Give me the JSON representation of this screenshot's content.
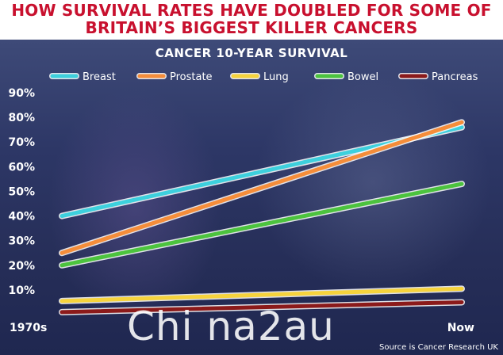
{
  "headline": {
    "line1": "HOW SURVIVAL RATES HAVE DOUBLED FOR SOME OF",
    "line2": "BRITAIN’S BIGGEST KILLER CANCERS"
  },
  "source": "Source is Cancer Research UK",
  "watermark": "Chi na2au",
  "chart_data": {
    "type": "line",
    "title": "CANCER 10-YEAR SURVIVAL",
    "categories": [
      "1970s",
      "Now"
    ],
    "ylim": [
      0,
      90
    ],
    "yticks": [
      "",
      "10%",
      "20%",
      "30%",
      "40%",
      "50%",
      "60%",
      "70%",
      "80%",
      "90%"
    ],
    "grid": false,
    "legend": "top",
    "series": [
      {
        "name": "Breast",
        "color": "#3dd0dd",
        "values": [
          40,
          76
        ]
      },
      {
        "name": "Prostate",
        "color": "#f58d3a",
        "values": [
          25,
          78
        ]
      },
      {
        "name": "Lung",
        "color": "#f6d33c",
        "values": [
          5.5,
          10.5
        ]
      },
      {
        "name": "Bowel",
        "color": "#4cc33e",
        "values": [
          20,
          53
        ]
      },
      {
        "name": "Pancreas",
        "color": "#8b1a1a",
        "values": [
          1,
          5
        ]
      }
    ]
  }
}
